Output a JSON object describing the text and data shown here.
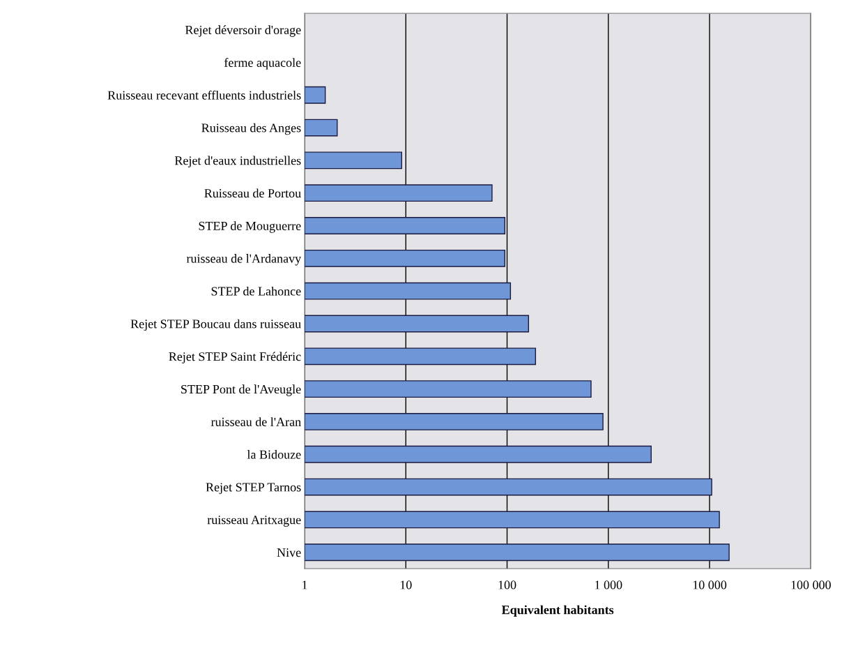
{
  "chart_data": {
    "type": "bar",
    "orientation": "horizontal",
    "log": "x",
    "xlabel": "Equivalent habitants",
    "categories": [
      "Rejet déversoir d'orage",
      "ferme aquacole",
      "Ruisseau recevant effluents industriels",
      "Ruisseau des Anges",
      "Rejet d'eaux industrielles",
      "Ruisseau de Portou",
      "STEP de Mouguerre",
      "ruisseau de l'Ardanavy",
      "STEP de Lahonce",
      "Rejet STEP Boucau dans ruisseau",
      "Rejet STEP Saint Frédéric",
      "STEP Pont de l'Aveugle",
      "ruisseau de l'Aran",
      "la Bidouze",
      "Rejet STEP Tarnos",
      "ruisseau Aritxague",
      "Nive"
    ],
    "values": [
      null,
      null,
      1.6,
      2.1,
      9.1,
      71,
      95,
      95,
      108,
      163,
      191,
      675,
      885,
      2650,
      10500,
      12500,
      15600
    ],
    "color": "#6f97d8",
    "xlim": [
      1,
      100000
    ],
    "xticks": [
      1,
      10,
      100,
      {
        "value": 1000,
        "label": "1 000"
      },
      {
        "value": 10000,
        "label": "10 000"
      },
      {
        "value": 100000,
        "label": "100 000"
      }
    ],
    "grid": "x"
  }
}
